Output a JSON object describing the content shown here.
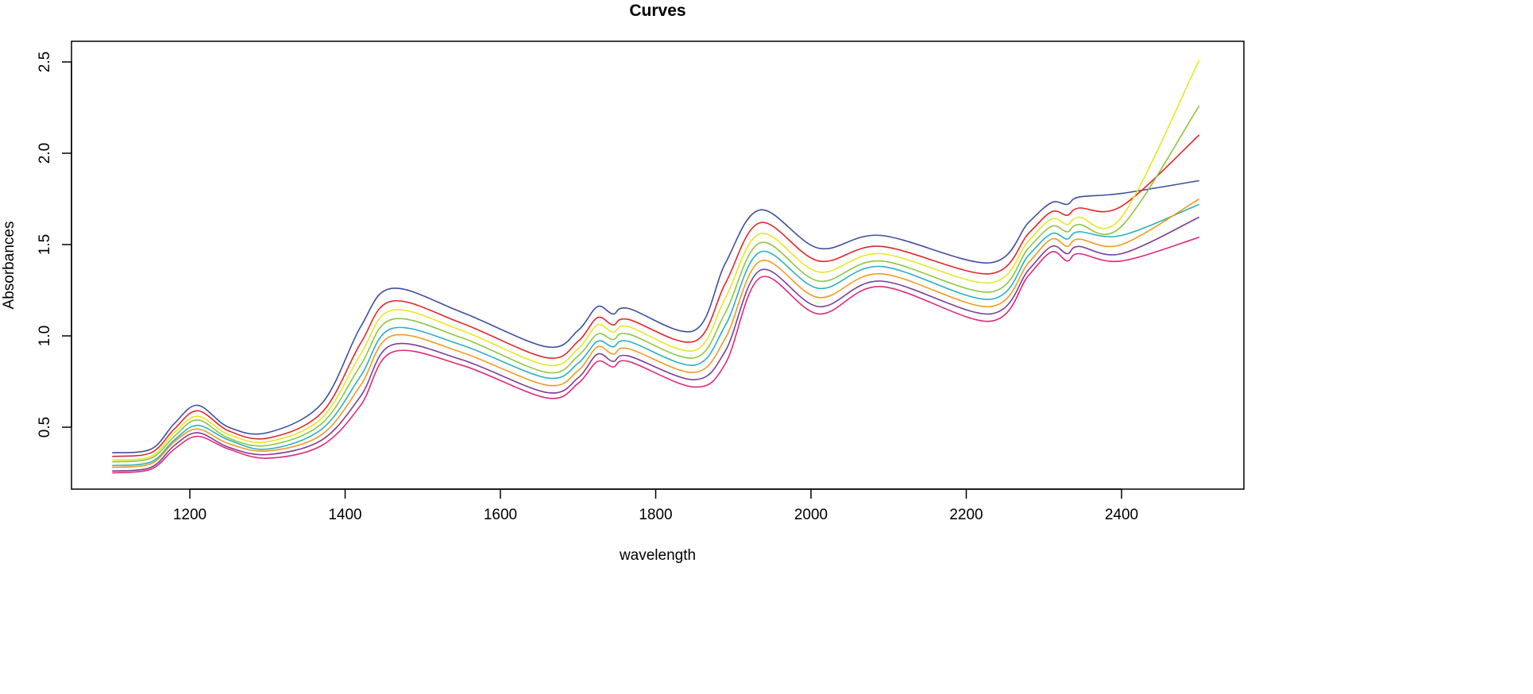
{
  "chart_data": {
    "type": "line",
    "title": "Curves",
    "xlabel": "wavelength",
    "ylabel": "Absorbances",
    "xlim": [
      1050,
      2560
    ],
    "ylim": [
      0.15,
      2.6
    ],
    "x_ticks": [
      "1200",
      "1400",
      "1600",
      "1800",
      "2000",
      "2200",
      "2400"
    ],
    "y_ticks": [
      "0.5",
      "1.0",
      "1.5",
      "2.0",
      "2.5"
    ],
    "grid": false,
    "legend": "none",
    "x": [
      1100,
      1150,
      1180,
      1210,
      1250,
      1300,
      1370,
      1420,
      1460,
      1550,
      1660,
      1700,
      1725,
      1745,
      1765,
      1850,
      1890,
      1935,
      2010,
      2090,
      2230,
      2280,
      2310,
      2330,
      2345,
      2400,
      2500
    ],
    "series": [
      {
        "color": "#3f4fa0",
        "values": [
          0.36,
          0.38,
          0.52,
          0.62,
          0.5,
          0.47,
          0.63,
          1.05,
          1.26,
          1.13,
          0.94,
          1.03,
          1.16,
          1.12,
          1.15,
          1.03,
          1.4,
          1.69,
          1.48,
          1.55,
          1.4,
          1.62,
          1.73,
          1.72,
          1.76,
          1.78,
          1.85
        ]
      },
      {
        "color": "#e3262a",
        "values": [
          0.34,
          0.36,
          0.49,
          0.59,
          0.48,
          0.44,
          0.58,
          0.96,
          1.19,
          1.07,
          0.88,
          0.97,
          1.1,
          1.06,
          1.09,
          0.97,
          1.29,
          1.62,
          1.41,
          1.49,
          1.34,
          1.56,
          1.68,
          1.66,
          1.7,
          1.71,
          2.1
        ]
      },
      {
        "color": "#e8e624",
        "values": [
          0.32,
          0.34,
          0.47,
          0.56,
          0.46,
          0.42,
          0.55,
          0.9,
          1.14,
          1.03,
          0.84,
          0.93,
          1.06,
          1.02,
          1.05,
          0.92,
          1.21,
          1.56,
          1.35,
          1.45,
          1.29,
          1.52,
          1.64,
          1.61,
          1.65,
          1.65,
          2.51
        ]
      },
      {
        "color": "#8dc63f",
        "values": [
          0.31,
          0.33,
          0.45,
          0.54,
          0.44,
          0.4,
          0.52,
          0.84,
          1.09,
          0.99,
          0.8,
          0.89,
          1.01,
          0.98,
          1.01,
          0.88,
          1.13,
          1.51,
          1.3,
          1.41,
          1.24,
          1.48,
          1.6,
          1.57,
          1.61,
          1.6,
          2.26
        ]
      },
      {
        "color": "#2ab0c0",
        "values": [
          0.29,
          0.31,
          0.43,
          0.51,
          0.43,
          0.38,
          0.49,
          0.78,
          1.04,
          0.95,
          0.77,
          0.85,
          0.97,
          0.94,
          0.97,
          0.84,
          1.06,
          1.46,
          1.26,
          1.38,
          1.2,
          1.44,
          1.56,
          1.53,
          1.57,
          1.55,
          1.72
        ]
      },
      {
        "color": "#f39a1e",
        "values": [
          0.28,
          0.3,
          0.42,
          0.49,
          0.41,
          0.37,
          0.46,
          0.73,
          1.0,
          0.91,
          0.73,
          0.81,
          0.94,
          0.9,
          0.93,
          0.8,
          0.99,
          1.41,
          1.21,
          1.34,
          1.16,
          1.4,
          1.53,
          1.49,
          1.53,
          1.5,
          1.75
        ]
      },
      {
        "color": "#7b3f98",
        "values": [
          0.26,
          0.28,
          0.4,
          0.47,
          0.39,
          0.35,
          0.43,
          0.67,
          0.95,
          0.87,
          0.69,
          0.77,
          0.9,
          0.86,
          0.89,
          0.76,
          0.92,
          1.36,
          1.16,
          1.3,
          1.12,
          1.36,
          1.49,
          1.45,
          1.49,
          1.45,
          1.65
        ]
      },
      {
        "color": "#e0287a",
        "values": [
          0.25,
          0.27,
          0.38,
          0.45,
          0.38,
          0.33,
          0.4,
          0.62,
          0.91,
          0.84,
          0.66,
          0.74,
          0.86,
          0.83,
          0.86,
          0.72,
          0.85,
          1.32,
          1.12,
          1.27,
          1.08,
          1.33,
          1.46,
          1.41,
          1.45,
          1.41,
          1.54
        ]
      }
    ]
  }
}
